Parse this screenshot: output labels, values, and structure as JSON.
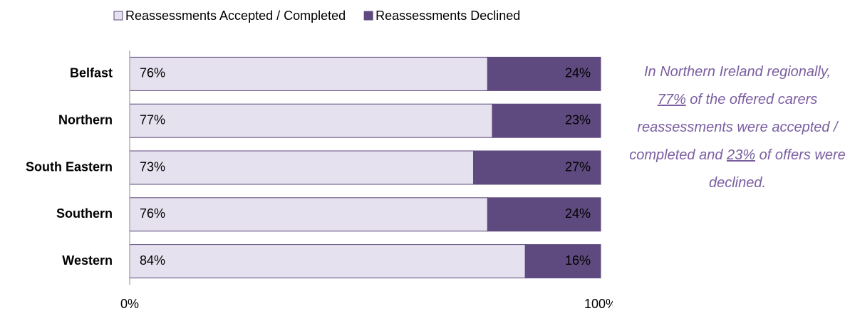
{
  "chart_data": {
    "type": "stacked_bar_horizontal",
    "categories": [
      "Belfast",
      "Northern",
      "South Eastern",
      "Southern",
      "Western"
    ],
    "series": [
      {
        "name": "Reassessments Accepted / Completed",
        "color": "#e6e1ee",
        "values": [
          76,
          77,
          73,
          76,
          84
        ],
        "value_labels": [
          "76%",
          "77%",
          "73%",
          "76%",
          "84%"
        ]
      },
      {
        "name": "Reassessments Declined",
        "color": "#5e4a7e",
        "values": [
          24,
          23,
          27,
          24,
          16
        ],
        "value_labels": [
          "24%",
          "23%",
          "27%",
          "24%",
          "16%"
        ]
      }
    ],
    "xlim": [
      0,
      100
    ],
    "xticks": [
      {
        "value": 0,
        "label": "0%"
      },
      {
        "value": 100,
        "label": "100%"
      }
    ],
    "legend": "top",
    "annotation": [
      "In Northern Ireland regionally, ",
      "77%",
      " of the offered carers reassessments were accepted / completed and ",
      "23%",
      " of offers were declined."
    ]
  }
}
